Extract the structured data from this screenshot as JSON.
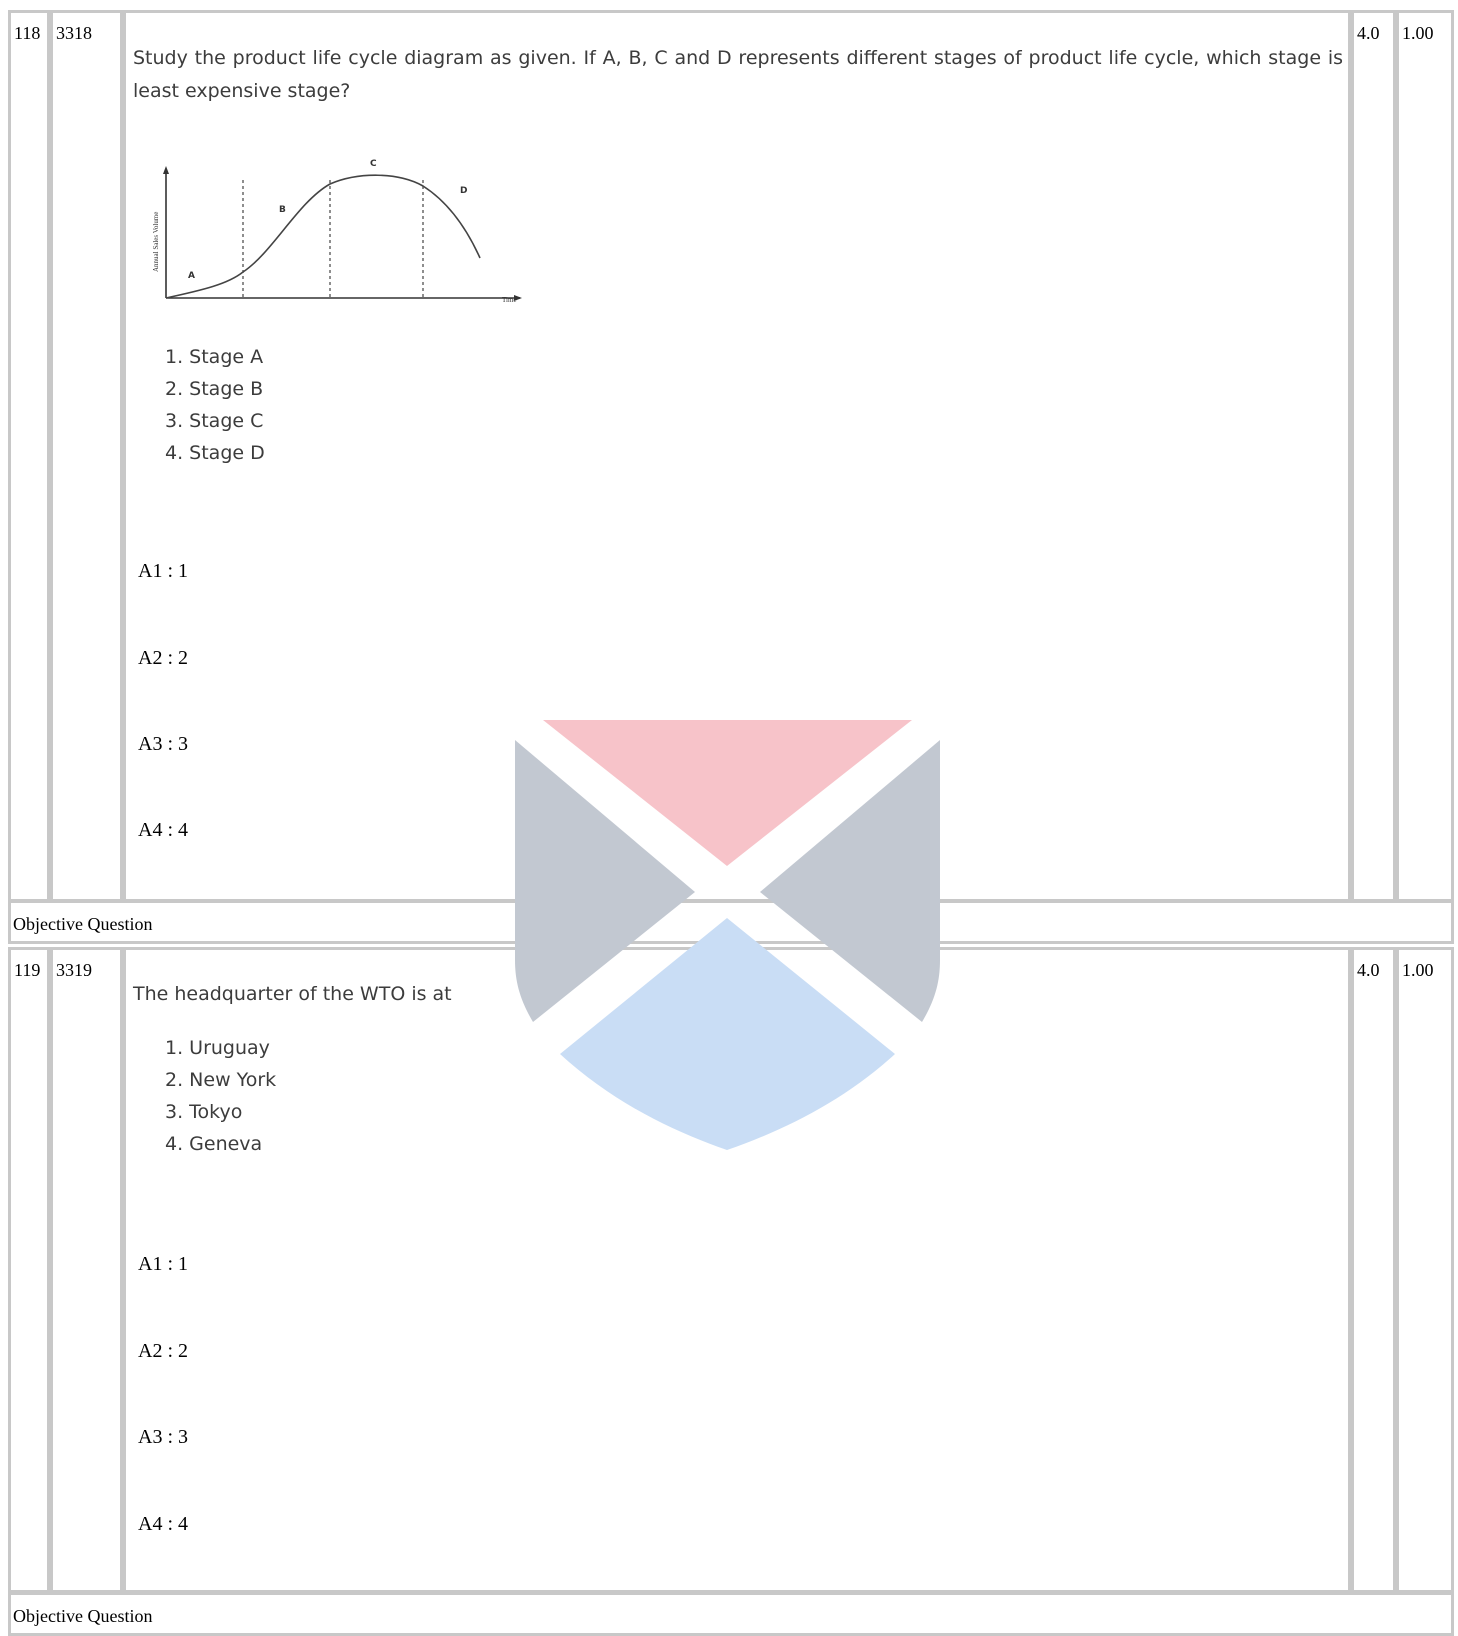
{
  "questions": [
    {
      "sno": "118",
      "qid": "3318",
      "text": "Study the product life cycle diagram as given. If A, B, C and D represents different stages of product life cycle, which stage is least expensive stage?",
      "figure": {
        "y_axis_label": "Annual Sales Volume",
        "x_axis_label": "Time",
        "stage_labels": [
          "A",
          "B",
          "C",
          "D"
        ]
      },
      "options": [
        "1. Stage A",
        "2. Stage B",
        "3. Stage C",
        "4. Stage D"
      ],
      "answers": [
        "A1 : 1",
        "A2 : 2",
        "A3 : 3",
        "A4 : 4"
      ],
      "marks": "4.0",
      "negative": "1.00",
      "type": "Objective Question"
    },
    {
      "sno": "119",
      "qid": "3319",
      "text": "The headquarter of the WTO is at",
      "options": [
        "1. Uruguay",
        "2. New York",
        "3. Tokyo",
        "4. Geneva"
      ],
      "answers": [
        "A1 : 1",
        "A2 : 2",
        "A3 : 3",
        "A4 : 4"
      ],
      "marks": "4.0",
      "negative": "1.00",
      "type": "Objective Question"
    }
  ],
  "watermark": {
    "colors": {
      "top": "#f7c3c9",
      "sides": "#c2c8d1",
      "bottom": "#c9ddf5"
    }
  }
}
